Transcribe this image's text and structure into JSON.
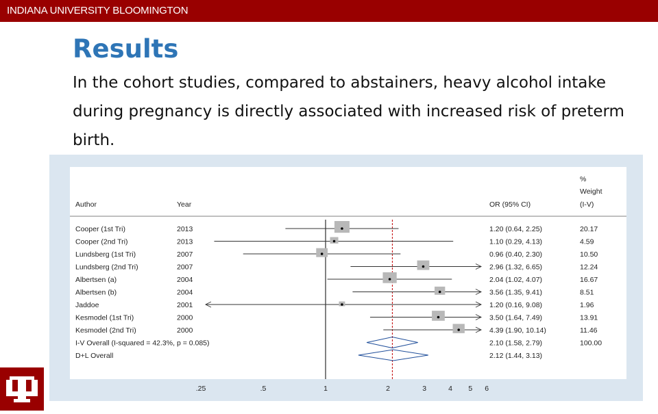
{
  "header": {
    "institution": "INDIANA UNIVERSITY BLOOMINGTON"
  },
  "slide": {
    "title": "Results",
    "body": "In the cohort studies, compared to abstainers, heavy alcohol intake during pregnancy is directly associated with increased risk of preterm birth."
  },
  "colors": {
    "brand": "#990000",
    "title": "#2e75b6",
    "plot_background": "#dbe6f0",
    "overall_line": "#c00000",
    "diamond": "#1f4e9a"
  },
  "chart_data": {
    "type": "forest",
    "columns": {
      "author": "Author",
      "year": "Year",
      "or": "OR (95% CI)",
      "weight_line1": "%",
      "weight_line2": "Weight",
      "weight_line3": "(I-V)"
    },
    "studies": [
      {
        "author": "Cooper (1st Tri)",
        "year": "2013",
        "or": 1.2,
        "lo": 0.64,
        "hi": 2.25,
        "or_text": "1.20 (0.64, 2.25)",
        "weight": "20.17"
      },
      {
        "author": "Cooper (2nd Tri)",
        "year": "2013",
        "or": 1.1,
        "lo": 0.29,
        "hi": 4.13,
        "or_text": "1.10 (0.29, 4.13)",
        "weight": "4.59"
      },
      {
        "author": "Lundsberg (1st Tri)",
        "year": "2007",
        "or": 0.96,
        "lo": 0.4,
        "hi": 2.3,
        "or_text": "0.96 (0.40, 2.30)",
        "weight": "10.50"
      },
      {
        "author": "Lundsberg (2nd Tri)",
        "year": "2007",
        "or": 2.96,
        "lo": 1.32,
        "hi": 6.65,
        "or_text": "2.96 (1.32, 6.65)",
        "weight": "12.24"
      },
      {
        "author": "Albertsen (a)",
        "year": "2004",
        "or": 2.04,
        "lo": 1.02,
        "hi": 4.07,
        "or_text": "2.04 (1.02, 4.07)",
        "weight": "16.67"
      },
      {
        "author": "Albertsen (b)",
        "year": "2004",
        "or": 3.56,
        "lo": 1.35,
        "hi": 9.41,
        "or_text": "3.56 (1.35, 9.41)",
        "weight": "8.51"
      },
      {
        "author": "Jaddoe",
        "year": "2001",
        "or": 1.2,
        "lo": 0.16,
        "hi": 9.08,
        "or_text": "1.20 (0.16, 9.08)",
        "weight": "1.96"
      },
      {
        "author": "Kesmodel (1st Tri)",
        "year": "2000",
        "or": 3.5,
        "lo": 1.64,
        "hi": 7.49,
        "or_text": "3.50 (1.64, 7.49)",
        "weight": "13.91"
      },
      {
        "author": "Kesmodel (2nd Tri)",
        "year": "2000",
        "or": 4.39,
        "lo": 1.9,
        "hi": 10.14,
        "or_text": "4.39 (1.90, 10.14)",
        "weight": "11.46"
      }
    ],
    "overall": [
      {
        "label": "I-V Overall  (I-squared = 42.3%, p = 0.085)",
        "or": 2.1,
        "lo": 1.58,
        "hi": 2.79,
        "or_text": "2.10 (1.58, 2.79)",
        "weight": "100.00"
      },
      {
        "label": "D+L Overall",
        "or": 2.12,
        "lo": 1.44,
        "hi": 3.13,
        "or_text": "2.12 (1.44, 3.13)",
        "weight": ""
      }
    ],
    "x_ticks": [
      ".25",
      ".5",
      "1",
      "2",
      "3",
      "4",
      "5",
      "6"
    ],
    "x_scale": "log",
    "xlim": [
      0.25,
      6
    ],
    "null_line": 1
  }
}
